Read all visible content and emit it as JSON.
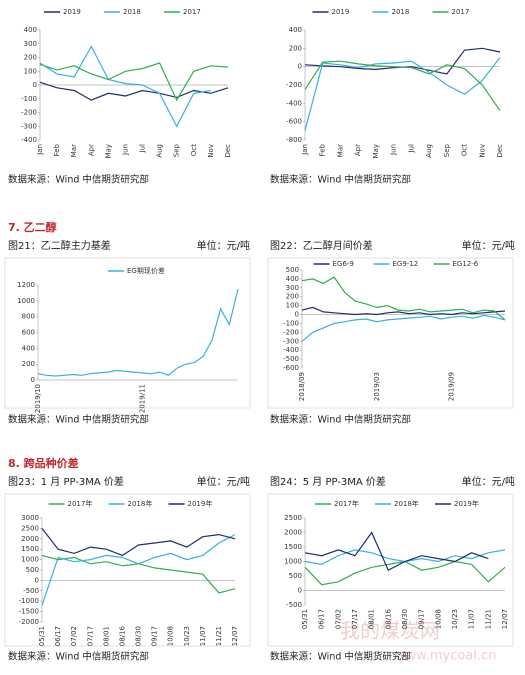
{
  "sections": [
    {
      "heading": "7. 乙二醇"
    },
    {
      "heading": "8. 跨品种价差"
    }
  ],
  "watermark": {
    "name": "我的煤炭网",
    "url": "www.mycoal.cn"
  },
  "chart_data": [
    {
      "type": "line",
      "source": "数据来源：Wind 中信期货研究部",
      "categories": [
        "Jan",
        "Feb",
        "Mar",
        "Apr",
        "May",
        "Jun",
        "Jul",
        "Aug",
        "Sep",
        "Oct",
        "Nov",
        "Dec"
      ],
      "series": [
        {
          "name": "2019",
          "color": "#1f2d6b",
          "values": [
            20,
            -20,
            -40,
            -110,
            -60,
            -80,
            -40,
            -60,
            -90,
            -40,
            -60,
            -20
          ]
        },
        {
          "name": "2018",
          "color": "#3ab0e0",
          "values": [
            160,
            80,
            60,
            280,
            40,
            10,
            0,
            -60,
            -300,
            -60,
            -40,
            null
          ]
        },
        {
          "name": "2017",
          "color": "#2eb04a",
          "values": [
            150,
            110,
            140,
            80,
            40,
            100,
            120,
            160,
            -110,
            100,
            140,
            130
          ]
        }
      ],
      "ylim": [
        -400,
        400
      ],
      "yticks": [
        -400,
        -300,
        -200,
        -100,
        0,
        100,
        200,
        300,
        400
      ]
    },
    {
      "type": "line",
      "source": "数据来源：Wind 中信期货研究部",
      "categories": [
        "Jan",
        "Feb",
        "Mar",
        "Apr",
        "May",
        "Jun",
        "Jul",
        "Aug",
        "Sep",
        "Oct",
        "Nov",
        "Dec"
      ],
      "series": [
        {
          "name": "2019",
          "color": "#1f2d6b",
          "values": [
            20,
            10,
            0,
            -20,
            -30,
            -10,
            0,
            -40,
            -80,
            180,
            200,
            160
          ]
        },
        {
          "name": "2018",
          "color": "#3ab0e0",
          "values": [
            -700,
            40,
            20,
            -10,
            30,
            40,
            60,
            -60,
            -200,
            -300,
            -150,
            100
          ]
        },
        {
          "name": "2017",
          "color": "#2eb04a",
          "values": [
            -250,
            50,
            60,
            30,
            10,
            0,
            -10,
            -80,
            20,
            -20,
            -200,
            -480
          ]
        }
      ],
      "ylim": [
        -800,
        400
      ],
      "yticks": [
        -800,
        -600,
        -400,
        -200,
        0,
        200,
        400
      ]
    },
    {
      "type": "line",
      "title": "图21：乙二醇主力基差",
      "unit": "单位：元/吨",
      "source": "数据来源：Wind 中信期货研究部",
      "categories": [
        "2019/10",
        null,
        null,
        null,
        null,
        null,
        null,
        null,
        null,
        null,
        null,
        null,
        "2019/11",
        null,
        null,
        null,
        null,
        null,
        null,
        null,
        null,
        null,
        null,
        null
      ],
      "series": [
        {
          "name": "EG期现价差",
          "color": "#3ab0e0",
          "values": [
            80,
            60,
            50,
            60,
            70,
            60,
            80,
            90,
            100,
            120,
            110,
            100,
            90,
            80,
            100,
            60,
            150,
            200,
            220,
            300,
            500,
            900,
            700,
            1150
          ]
        }
      ],
      "ylim": [
        0,
        1200
      ],
      "yticks": [
        0,
        200,
        400,
        600,
        800,
        1000,
        1200
      ]
    },
    {
      "type": "line",
      "title": "图22：乙二醇月间价差",
      "unit": "单位：元/吨",
      "source": "数据来源：Wind 中信期货研究部",
      "categories": [
        "2018/09",
        null,
        null,
        null,
        null,
        null,
        null,
        "2019/03",
        null,
        null,
        null,
        null,
        null,
        null,
        "2019/09",
        null,
        null,
        null,
        null,
        null
      ],
      "series": [
        {
          "name": "EG6-9",
          "color": "#1f2d6b",
          "values": [
            50,
            80,
            30,
            20,
            10,
            0,
            10,
            0,
            20,
            30,
            10,
            20,
            0,
            10,
            0,
            20,
            10,
            20,
            30,
            40
          ]
        },
        {
          "name": "EG9-12",
          "color": "#3ab0e0",
          "values": [
            -300,
            -200,
            -150,
            -100,
            -80,
            -60,
            -50,
            -80,
            -60,
            -50,
            -40,
            -30,
            -20,
            -50,
            -30,
            -20,
            -40,
            -10,
            -30,
            -60
          ]
        },
        {
          "name": "EG12-6",
          "color": "#2eb04a",
          "values": [
            380,
            400,
            350,
            420,
            250,
            150,
            120,
            80,
            100,
            50,
            40,
            60,
            30,
            40,
            50,
            60,
            20,
            50,
            40,
            -60
          ]
        }
      ],
      "ylim": [
        -600,
        500
      ],
      "yticks": [
        -600,
        -500,
        -400,
        -300,
        -200,
        -100,
        0,
        100,
        200,
        300,
        400,
        500
      ]
    },
    {
      "type": "line",
      "title": "图23：1 月 PP-3MA 价差",
      "unit": "单位：元/吨",
      "source": "数据来源：Wind 中信期货研究部",
      "categories": [
        "05/31",
        "06/17",
        "07/02",
        "07/17",
        "08/01",
        "08/16",
        "08/30",
        "09/17",
        "10/08",
        "10/23",
        "11/07",
        "11/21",
        "12/07"
      ],
      "series": [
        {
          "name": "2017年",
          "color": "#2eb04a",
          "values": [
            1200,
            1000,
            1100,
            800,
            900,
            700,
            800,
            600,
            500,
            400,
            300,
            -600,
            -400
          ]
        },
        {
          "name": "2018年",
          "color": "#3ab0e0",
          "values": [
            -1200,
            1100,
            900,
            1000,
            1200,
            1100,
            800,
            1100,
            1300,
            1000,
            1200,
            1800,
            2200
          ]
        },
        {
          "name": "2019年",
          "color": "#1f2d6b",
          "values": [
            2500,
            1500,
            1300,
            1600,
            1500,
            1200,
            1700,
            1800,
            1900,
            1600,
            2100,
            2200,
            2000
          ]
        }
      ],
      "ylim": [
        -2000,
        3000
      ],
      "yticks": [
        -2000,
        -1500,
        -1000,
        -500,
        0,
        500,
        1000,
        1500,
        2000,
        2500,
        3000
      ]
    },
    {
      "type": "line",
      "title": "图24：5 月 PP-3MA 价差",
      "unit": "单位：元/吨",
      "source": "数据来源：Wind 中信期货研究部",
      "categories": [
        "05/31",
        "06/17",
        "07/02",
        "07/17",
        "08/01",
        "08/16",
        "08/30",
        "09/17",
        "10/08",
        "10/23",
        "11/07",
        "11/21",
        "12/07"
      ],
      "series": [
        {
          "name": "2017年",
          "color": "#2eb04a",
          "values": [
            800,
            200,
            300,
            600,
            800,
            900,
            1000,
            700,
            800,
            1000,
            900,
            300,
            800
          ]
        },
        {
          "name": "2018年",
          "color": "#3ab0e0",
          "values": [
            1000,
            900,
            1200,
            1400,
            1300,
            1100,
            1000,
            1100,
            1000,
            1200,
            1100,
            1300,
            1400
          ]
        },
        {
          "name": "2019年",
          "color": "#1f2d6b",
          "values": [
            1300,
            1200,
            1400,
            1200,
            2000,
            700,
            1000,
            1200,
            1100,
            1000,
            1300,
            1100,
            null
          ]
        }
      ],
      "ylim": [
        -500,
        2500
      ],
      "yticks": [
        -500,
        0,
        500,
        1000,
        1500,
        2000,
        2500
      ]
    }
  ]
}
